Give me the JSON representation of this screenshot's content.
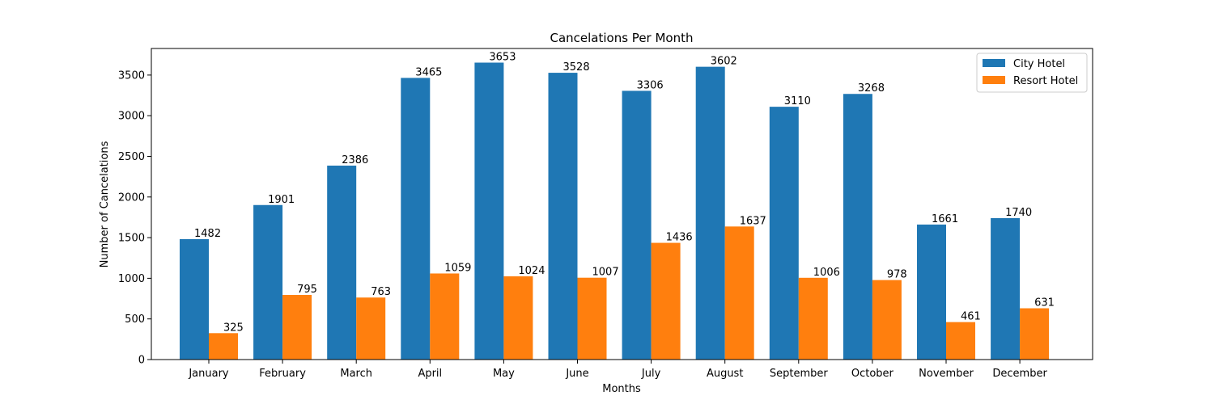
{
  "chart_data": {
    "type": "bar",
    "title": "Cancelations Per Month",
    "xlabel": "Months",
    "ylabel": "Number of Cancelations",
    "categories": [
      "January",
      "February",
      "March",
      "April",
      "May",
      "June",
      "July",
      "August",
      "September",
      "October",
      "November",
      "December"
    ],
    "series": [
      {
        "name": "City Hotel",
        "color": "#1f77b4",
        "values": [
          1482,
          1901,
          2386,
          3465,
          3653,
          3528,
          3306,
          3602,
          3110,
          3268,
          1661,
          1740
        ]
      },
      {
        "name": "Resort Hotel",
        "color": "#ff7f0e",
        "values": [
          325,
          795,
          763,
          1059,
          1024,
          1007,
          1436,
          1637,
          1006,
          978,
          461,
          631
        ]
      }
    ],
    "ylim": [
      0,
      3827
    ],
    "yticks": [
      0,
      500,
      1000,
      1500,
      2000,
      2500,
      3000,
      3500
    ],
    "grid": false,
    "legend": "top-right"
  }
}
